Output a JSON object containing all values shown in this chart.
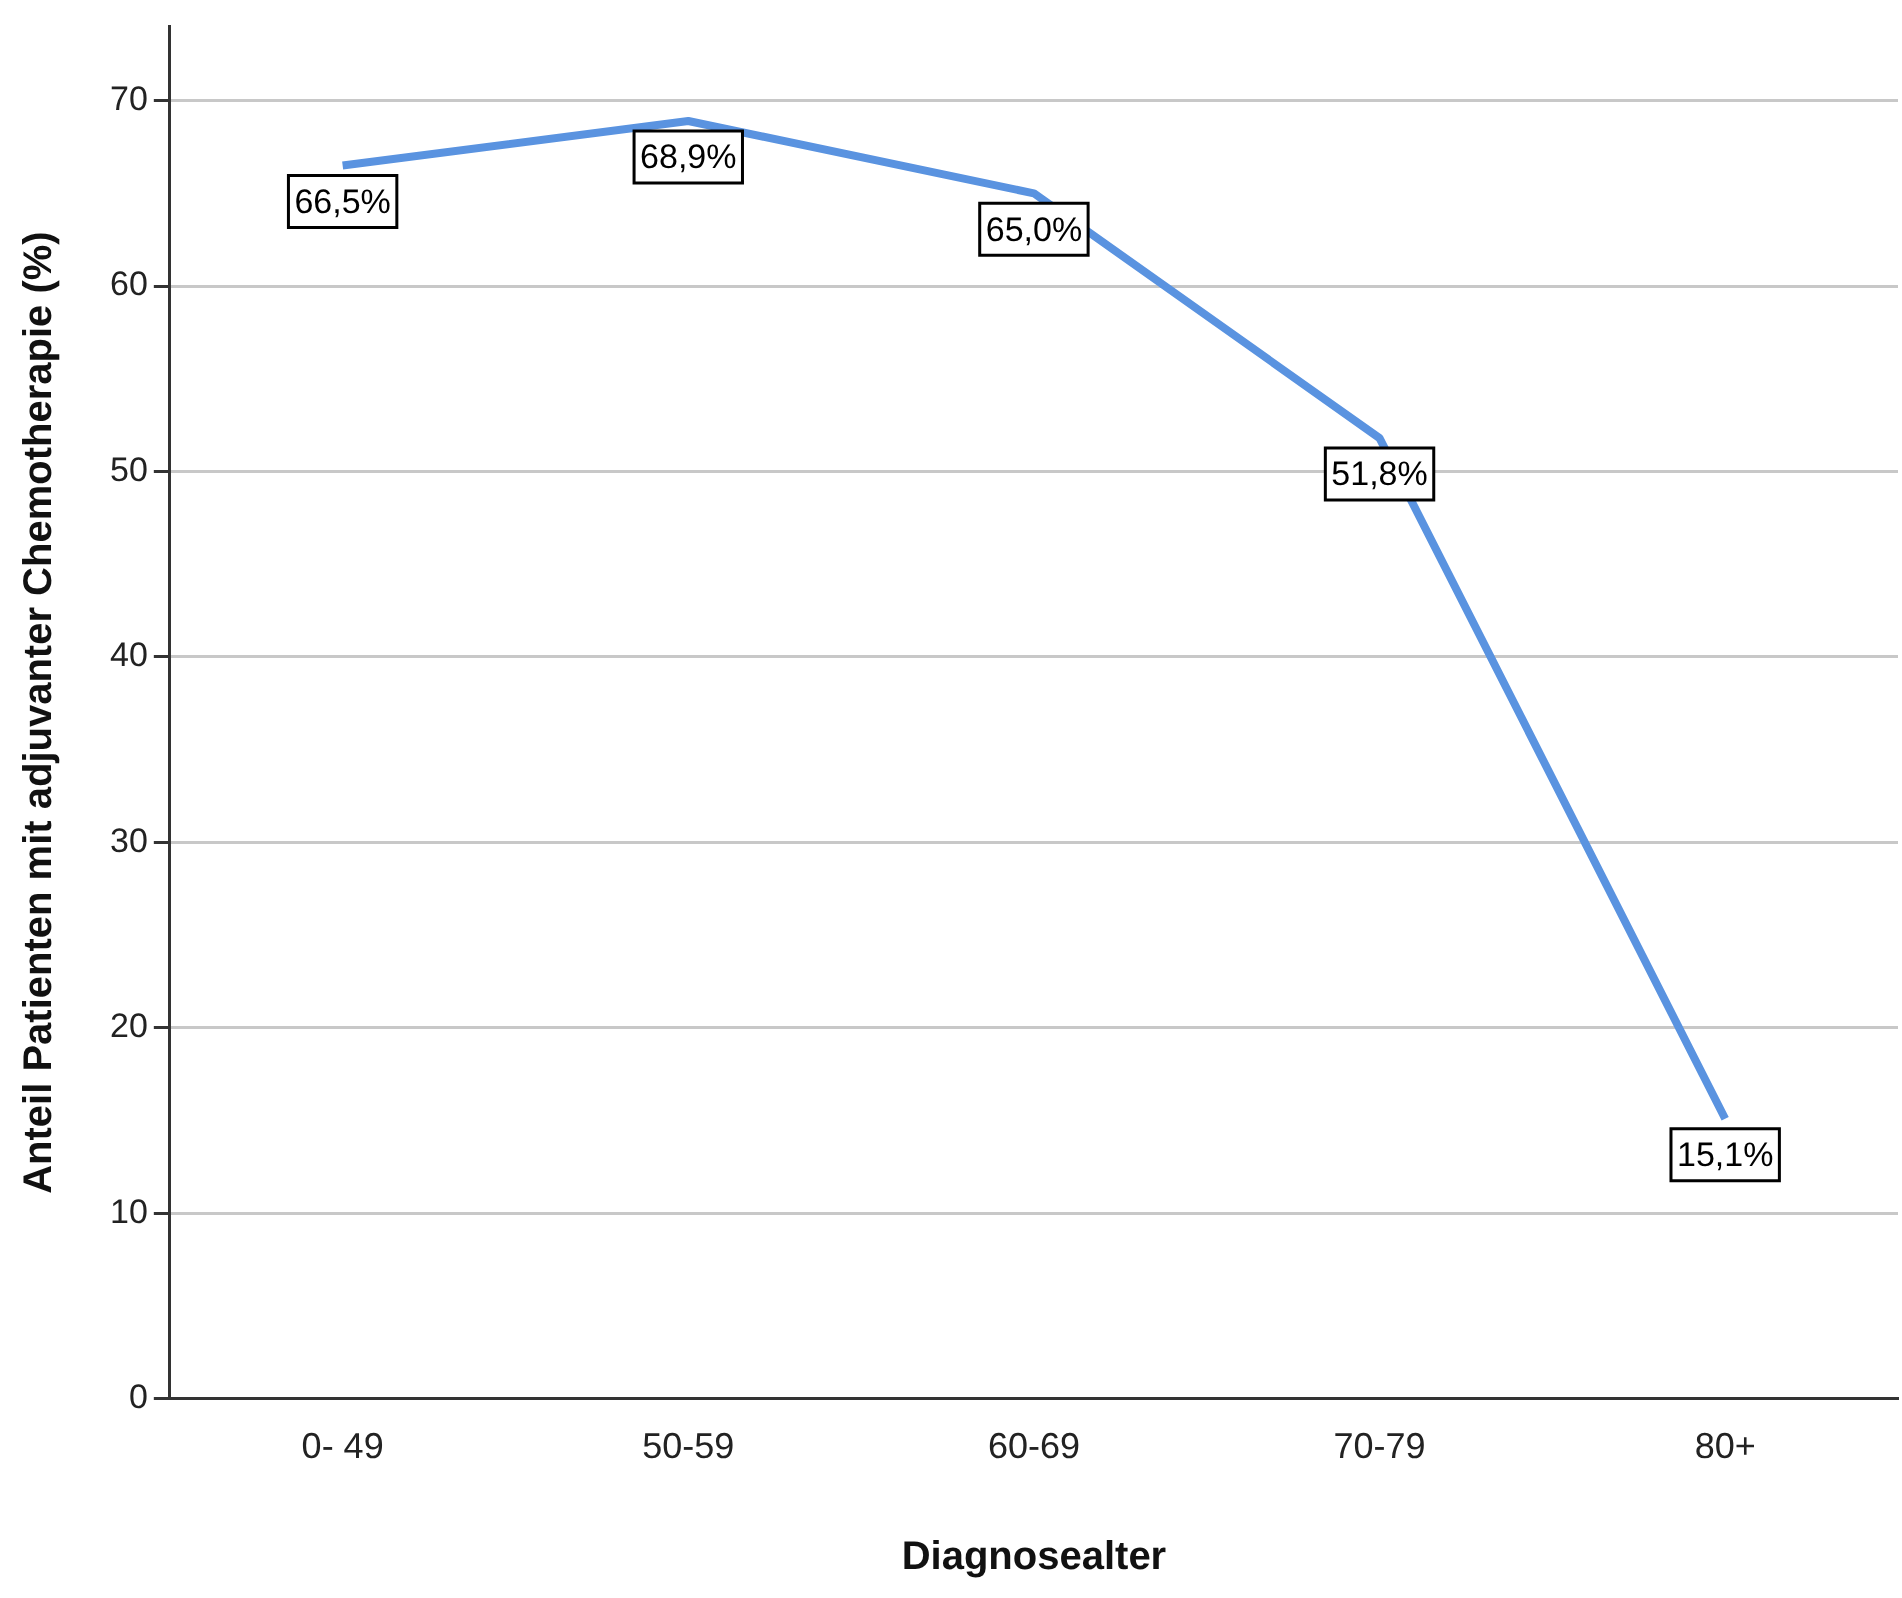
{
  "chart_data": {
    "type": "line",
    "xlabel": "Diagnosealter",
    "ylabel": "Anteil Patienten mit adjuvanter Chemotherapie (%)",
    "categories": [
      "0- 49",
      "50-59",
      "60-69",
      "70-79",
      "80+"
    ],
    "series": [
      {
        "color": "#5a93e0",
        "values": [
          66.5,
          68.9,
          65.0,
          51.8,
          15.1
        ],
        "value_labels": [
          "66,5%",
          "68,9%",
          "65,0%",
          "51,8%",
          "15,1%"
        ]
      }
    ],
    "ylim": [
      0,
      74
    ],
    "yticks": [
      0,
      10,
      20,
      30,
      40,
      50,
      60,
      70
    ],
    "grid": "y",
    "legend": false,
    "marker": "none"
  }
}
